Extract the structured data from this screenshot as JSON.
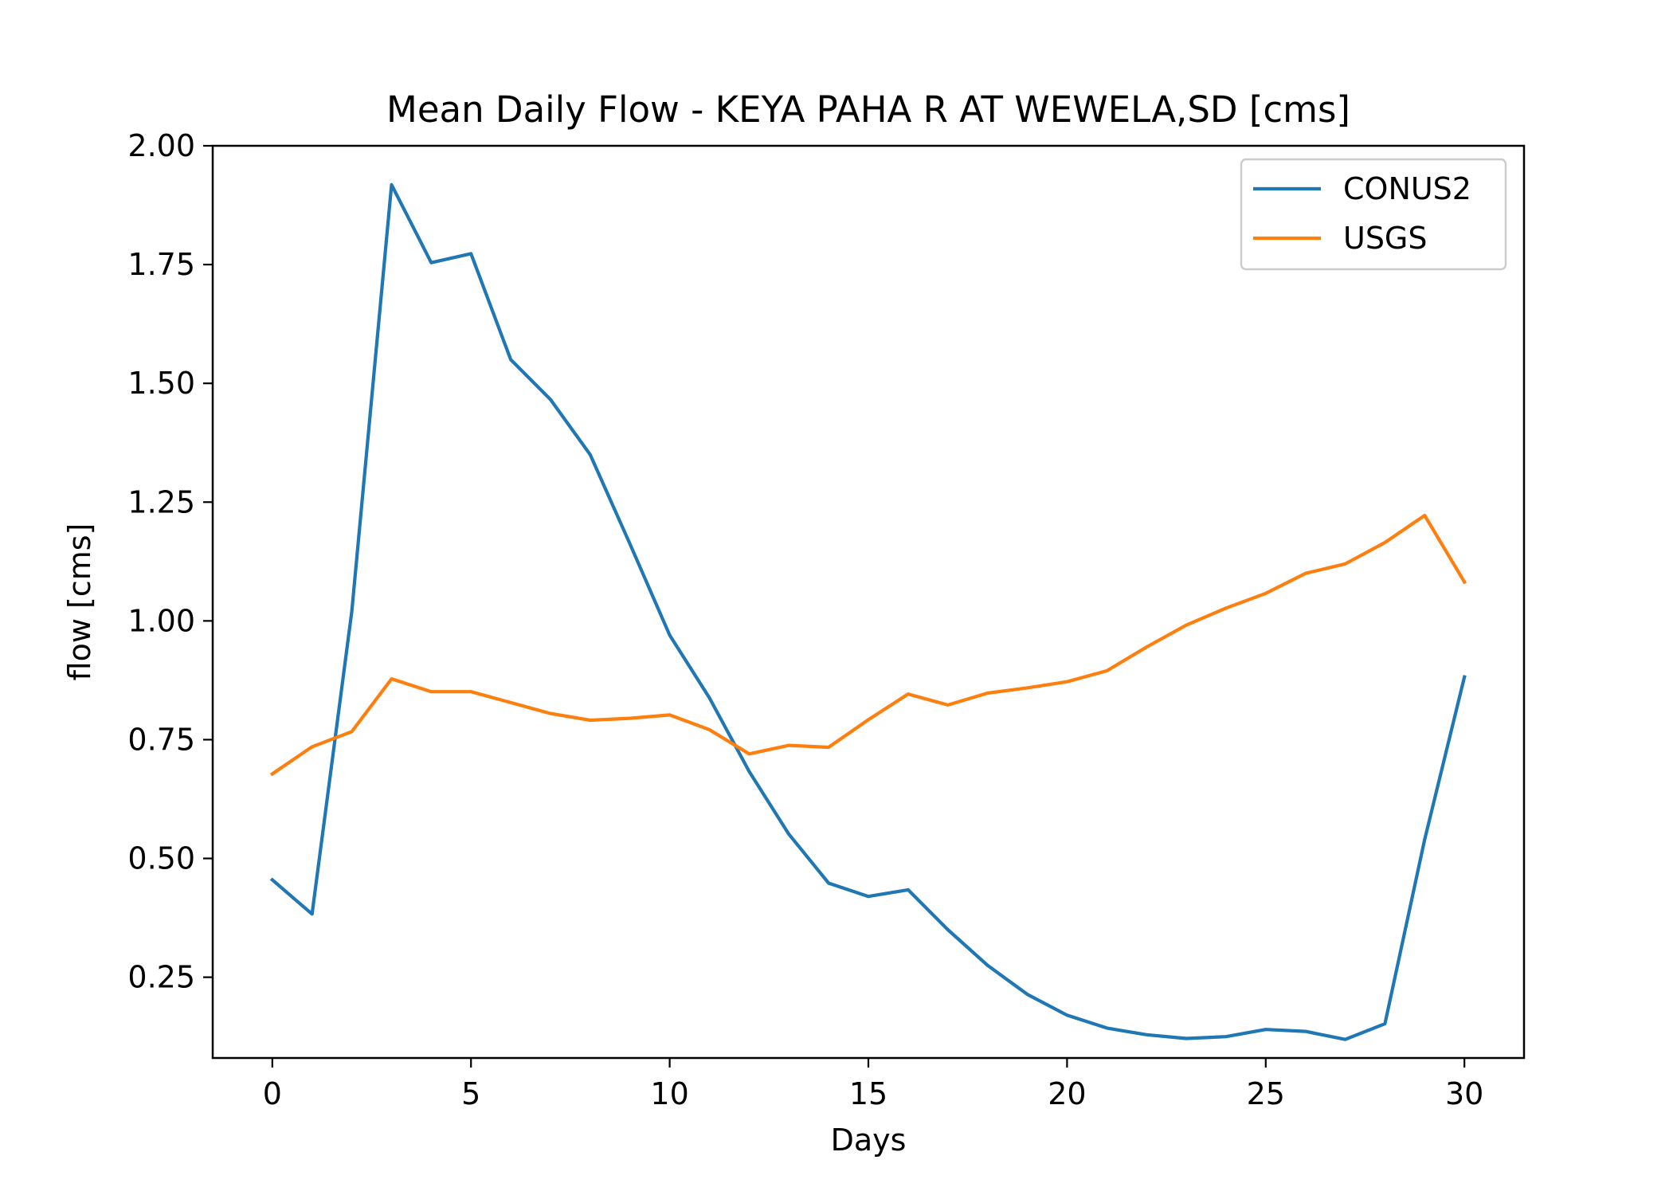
{
  "chart_data": {
    "type": "line",
    "title": "Mean Daily Flow - KEYA PAHA R AT WEWELA,SD [cms]",
    "xlabel": "Days",
    "ylabel": "flow [cms]",
    "xlim": [
      -1.5,
      31.5
    ],
    "ylim": [
      0.08,
      2.0
    ],
    "xticks": [
      0,
      5,
      10,
      15,
      20,
      25,
      30
    ],
    "xtick_labels": [
      "0",
      "5",
      "10",
      "15",
      "20",
      "25",
      "30"
    ],
    "yticks": [
      0.25,
      0.5,
      0.75,
      1.0,
      1.25,
      1.5,
      1.75,
      2.0
    ],
    "ytick_labels": [
      "0.25",
      "0.50",
      "0.75",
      "1.00",
      "1.25",
      "1.50",
      "1.75",
      "2.00"
    ],
    "grid": false,
    "legend_position": "top-right",
    "x": [
      0,
      1,
      2,
      3,
      4,
      5,
      6,
      7,
      8,
      9,
      10,
      11,
      12,
      13,
      14,
      15,
      16,
      17,
      18,
      19,
      20,
      21,
      22,
      23,
      24,
      25,
      26,
      27,
      28,
      29,
      30
    ],
    "series": [
      {
        "name": "CONUS2",
        "color": "#1f77b4",
        "values": [
          0.455,
          0.383,
          1.02,
          1.918,
          1.754,
          1.773,
          1.55,
          1.466,
          1.35,
          1.162,
          0.97,
          0.838,
          0.683,
          0.551,
          0.448,
          0.42,
          0.434,
          0.35,
          0.275,
          0.214,
          0.17,
          0.143,
          0.129,
          0.121,
          0.125,
          0.14,
          0.136,
          0.119,
          0.152,
          0.54,
          0.882
        ]
      },
      {
        "name": "USGS",
        "color": "#ff7f0e",
        "values": [
          0.678,
          0.735,
          0.767,
          0.878,
          0.851,
          0.851,
          0.828,
          0.805,
          0.791,
          0.795,
          0.802,
          0.771,
          0.72,
          0.738,
          0.734,
          0.792,
          0.846,
          0.823,
          0.848,
          0.859,
          0.872,
          0.895,
          0.945,
          0.991,
          1.027,
          1.058,
          1.1,
          1.12,
          1.165,
          1.222,
          1.082
        ]
      }
    ]
  }
}
